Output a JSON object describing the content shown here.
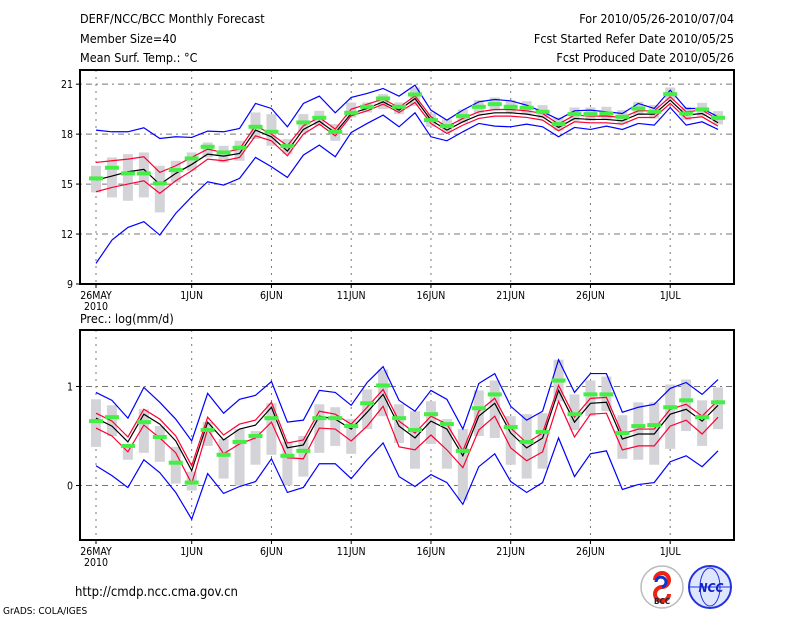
{
  "header": {
    "title": "DERF/NCC/BCC Monthly Forecast",
    "member_size": "Member Size=40",
    "variable": "Mean Surf. Temp.: °C",
    "period": "For 2010/05/26-2010/07/04",
    "started": "Fcst Started Refer Date 2010/05/25",
    "produced": "Fcst Produced Date 2010/05/26"
  },
  "footer": {
    "url": "http://cmdp.ncc.cma.gov.cn",
    "credit": "GrADS: COLA/IGES",
    "logo_bcc": "BCC",
    "logo_ncc": "NCC"
  },
  "colors": {
    "max_min": "#0000ff",
    "spread": "#ff0033",
    "mean": "#000000",
    "box": "#d3d3d8",
    "marker": "#44ee44",
    "grid": "#777777"
  },
  "chart_data": [
    {
      "type": "line",
      "title": "Mean Surf. Temp.: °C",
      "x_start": "2010-05-26",
      "n_days": 40,
      "xticks": [
        {
          "day": 0,
          "label": "26MAY",
          "sub": "2010"
        },
        {
          "day": 6,
          "label": "1JUN"
        },
        {
          "day": 11,
          "label": "6JUN"
        },
        {
          "day": 16,
          "label": "11JUN"
        },
        {
          "day": 21,
          "label": "16JUN"
        },
        {
          "day": 26,
          "label": "21JUN"
        },
        {
          "day": 31,
          "label": "26JUN"
        },
        {
          "day": 36,
          "label": "1JUL"
        }
      ],
      "yticks": [
        9,
        12,
        15,
        18,
        21
      ],
      "ylim": [
        9,
        21.85
      ],
      "grid": true,
      "series": {
        "max": [
          18.24,
          18.14,
          18.14,
          18.38,
          17.74,
          17.84,
          17.8,
          18.18,
          18.14,
          18.34,
          19.84,
          19.54,
          18.44,
          19.84,
          20.28,
          19.28,
          20.2,
          20.44,
          20.74,
          20.28,
          20.94,
          19.44,
          18.84,
          19.44,
          19.94,
          20.08,
          20.0,
          19.74,
          19.34,
          18.88,
          19.4,
          19.44,
          19.34,
          19.24,
          19.84,
          19.54,
          20.64,
          19.54,
          19.54,
          19.04
        ],
        "min": [
          10.24,
          11.64,
          12.4,
          12.74,
          11.94,
          13.24,
          14.24,
          15.14,
          14.94,
          15.34,
          16.6,
          16.04,
          15.4,
          16.74,
          17.34,
          16.64,
          18.1,
          18.64,
          19.14,
          18.44,
          19.28,
          17.84,
          17.6,
          18.14,
          18.64,
          18.48,
          18.44,
          18.6,
          18.44,
          17.84,
          18.4,
          18.28,
          18.48,
          18.28,
          18.64,
          18.54,
          19.6,
          18.54,
          18.74,
          18.28
        ],
        "upper": [
          16.3,
          16.4,
          16.5,
          16.64,
          15.7,
          16.1,
          16.6,
          17.1,
          16.9,
          17.1,
          18.5,
          18.0,
          17.3,
          18.5,
          19.0,
          18.3,
          19.5,
          19.8,
          20.1,
          19.6,
          20.3,
          19.04,
          18.44,
          18.94,
          19.34,
          19.48,
          19.48,
          19.4,
          19.24,
          18.6,
          19.14,
          19.08,
          19.08,
          19.0,
          19.4,
          19.4,
          20.24,
          19.34,
          19.44,
          18.88
        ],
        "mean": [
          15.24,
          15.48,
          15.74,
          15.88,
          14.98,
          15.64,
          16.18,
          16.8,
          16.68,
          16.84,
          18.24,
          17.84,
          16.98,
          18.28,
          18.78,
          18.08,
          19.24,
          19.54,
          19.94,
          19.44,
          20.14,
          18.84,
          18.24,
          18.74,
          19.14,
          19.28,
          19.28,
          19.2,
          19.04,
          18.4,
          18.94,
          18.88,
          18.88,
          18.8,
          19.2,
          19.2,
          20.04,
          19.14,
          19.24,
          18.68
        ],
        "lower": [
          14.54,
          14.8,
          15.0,
          15.2,
          14.44,
          15.2,
          15.8,
          16.5,
          16.4,
          16.6,
          17.9,
          17.6,
          16.7,
          18.0,
          18.6,
          17.9,
          19.1,
          19.4,
          19.8,
          19.3,
          19.9,
          18.64,
          18.04,
          18.54,
          18.94,
          19.08,
          19.08,
          19.0,
          18.84,
          18.2,
          18.74,
          18.68,
          18.68,
          18.6,
          19.0,
          19.0,
          19.84,
          18.94,
          19.04,
          18.48
        ],
        "box_low": [
          14.5,
          14.2,
          14.0,
          14.2,
          13.3,
          15.1,
          15.8,
          16.6,
          16.3,
          16.4,
          17.7,
          17.3,
          16.8,
          18.1,
          18.5,
          17.6,
          19.0,
          19.3,
          19.5,
          19.2,
          19.7,
          18.44,
          18.08,
          18.68,
          19.24,
          19.4,
          19.24,
          19.18,
          18.94,
          18.2,
          18.8,
          18.8,
          18.84,
          18.64,
          19.14,
          18.94,
          20.0,
          18.84,
          19.08,
          18.58
        ],
        "box_high": [
          16.1,
          16.6,
          16.8,
          16.9,
          16.1,
          16.4,
          16.9,
          17.5,
          17.3,
          17.6,
          19.3,
          19.2,
          17.7,
          19.2,
          19.4,
          18.6,
          19.9,
          19.9,
          20.4,
          19.9,
          20.8,
          19.24,
          18.88,
          19.48,
          20.04,
          20.2,
          20.04,
          19.98,
          19.74,
          19.0,
          19.6,
          19.6,
          19.64,
          19.44,
          19.94,
          19.74,
          20.8,
          19.64,
          19.88,
          19.38
        ],
        "marker": [
          15.34,
          15.98,
          15.64,
          15.64,
          15.04,
          15.84,
          16.54,
          17.24,
          16.9,
          17.18,
          18.44,
          18.14,
          17.28,
          18.7,
          18.98,
          18.14,
          19.28,
          19.64,
          20.14,
          19.64,
          20.38,
          18.84,
          18.48,
          19.08,
          19.64,
          19.8,
          19.64,
          19.58,
          19.34,
          18.6,
          19.2,
          19.2,
          19.24,
          19.04,
          19.54,
          19.34,
          20.4,
          19.24,
          19.48,
          18.98
        ]
      }
    },
    {
      "type": "line",
      "title": "Prec.: log(mm/d)",
      "x_start": "2010-05-26",
      "n_days": 40,
      "xticks": [
        {
          "day": 0,
          "label": "26MAY",
          "sub": "2010"
        },
        {
          "day": 6,
          "label": "1JUN"
        },
        {
          "day": 11,
          "label": "6JUN"
        },
        {
          "day": 16,
          "label": "11JUN"
        },
        {
          "day": 21,
          "label": "16JUN"
        },
        {
          "day": 26,
          "label": "21JUN"
        },
        {
          "day": 31,
          "label": "26JUN"
        },
        {
          "day": 36,
          "label": "1JUL"
        }
      ],
      "yticks": [
        0,
        1
      ],
      "ylim": [
        -0.55,
        1.57
      ],
      "grid": true,
      "series": {
        "max": [
          0.94,
          0.86,
          0.68,
          0.99,
          0.84,
          0.67,
          0.45,
          0.93,
          0.73,
          0.87,
          0.91,
          1.05,
          0.64,
          0.66,
          0.96,
          0.94,
          0.81,
          1.04,
          1.2,
          0.86,
          0.75,
          0.96,
          0.87,
          0.57,
          1.03,
          1.13,
          0.8,
          0.66,
          0.75,
          1.27,
          0.94,
          1.13,
          1.13,
          0.74,
          0.79,
          0.82,
          0.98,
          1.04,
          0.92,
          1.07
        ],
        "min": [
          0.2,
          0.1,
          -0.02,
          0.26,
          0.13,
          -0.07,
          -0.34,
          0.12,
          -0.08,
          -0.01,
          0.04,
          0.27,
          -0.07,
          -0.02,
          0.22,
          0.22,
          0.07,
          0.26,
          0.43,
          0.09,
          -0.01,
          0.11,
          0.03,
          -0.19,
          0.19,
          0.32,
          0.04,
          -0.07,
          0.03,
          0.48,
          0.09,
          0.32,
          0.35,
          -0.04,
          0.01,
          0.03,
          0.24,
          0.3,
          0.19,
          0.35
        ],
        "upper": [
          0.73,
          0.65,
          0.49,
          0.77,
          0.67,
          0.5,
          0.2,
          0.69,
          0.51,
          0.62,
          0.66,
          0.84,
          0.43,
          0.46,
          0.75,
          0.72,
          0.62,
          0.79,
          0.97,
          0.65,
          0.53,
          0.7,
          0.62,
          0.35,
          0.75,
          0.88,
          0.58,
          0.43,
          0.53,
          1.01,
          0.69,
          0.88,
          0.89,
          0.52,
          0.57,
          0.57,
          0.77,
          0.82,
          0.7,
          0.86
        ],
        "mean": [
          0.68,
          0.6,
          0.44,
          0.72,
          0.62,
          0.45,
          0.15,
          0.64,
          0.46,
          0.57,
          0.61,
          0.79,
          0.38,
          0.41,
          0.7,
          0.67,
          0.57,
          0.74,
          0.92,
          0.6,
          0.48,
          0.65,
          0.57,
          0.3,
          0.7,
          0.83,
          0.53,
          0.38,
          0.48,
          0.96,
          0.64,
          0.83,
          0.84,
          0.47,
          0.52,
          0.52,
          0.72,
          0.77,
          0.65,
          0.81
        ],
        "lower": [
          0.58,
          0.5,
          0.34,
          0.61,
          0.48,
          0.33,
          0.02,
          0.57,
          0.32,
          0.42,
          0.48,
          0.64,
          0.28,
          0.27,
          0.58,
          0.57,
          0.45,
          0.6,
          0.8,
          0.39,
          0.36,
          0.51,
          0.36,
          0.18,
          0.56,
          0.7,
          0.38,
          0.25,
          0.34,
          0.85,
          0.49,
          0.72,
          0.73,
          0.36,
          0.4,
          0.4,
          0.6,
          0.66,
          0.52,
          0.69
        ],
        "box_low": [
          0.39,
          0.5,
          0.26,
          0.33,
          0.24,
          0.02,
          -0.05,
          0.4,
          0.07,
          0.0,
          0.21,
          0.31,
          0.0,
          0.09,
          0.33,
          0.4,
          0.32,
          0.57,
          0.7,
          0.43,
          0.17,
          0.42,
          0.17,
          -0.15,
          0.5,
          0.48,
          0.21,
          0.07,
          0.17,
          0.85,
          0.56,
          0.7,
          0.75,
          0.27,
          0.26,
          0.21,
          0.37,
          0.55,
          0.4,
          0.57
        ],
        "box_high": [
          0.87,
          0.81,
          0.42,
          0.77,
          0.6,
          0.39,
          0.14,
          0.64,
          0.47,
          0.57,
          0.55,
          0.83,
          0.44,
          0.5,
          0.82,
          0.79,
          0.67,
          0.97,
          1.17,
          0.82,
          0.75,
          0.85,
          0.67,
          0.57,
          0.96,
          1.06,
          0.7,
          0.72,
          0.73,
          1.27,
          0.92,
          1.06,
          1.1,
          0.71,
          0.84,
          0.84,
          1.02,
          1.07,
          0.86,
          0.99
        ],
        "marker": [
          0.65,
          0.69,
          0.4,
          0.64,
          0.49,
          0.23,
          0.03,
          0.56,
          0.31,
          0.44,
          0.5,
          0.68,
          0.3,
          0.35,
          0.68,
          0.68,
          0.6,
          0.83,
          1.01,
          0.68,
          0.56,
          0.72,
          0.62,
          0.35,
          0.78,
          0.92,
          0.59,
          0.44,
          0.54,
          1.06,
          0.72,
          0.92,
          0.92,
          0.53,
          0.6,
          0.61,
          0.79,
          0.86,
          0.69,
          0.84
        ]
      }
    }
  ]
}
